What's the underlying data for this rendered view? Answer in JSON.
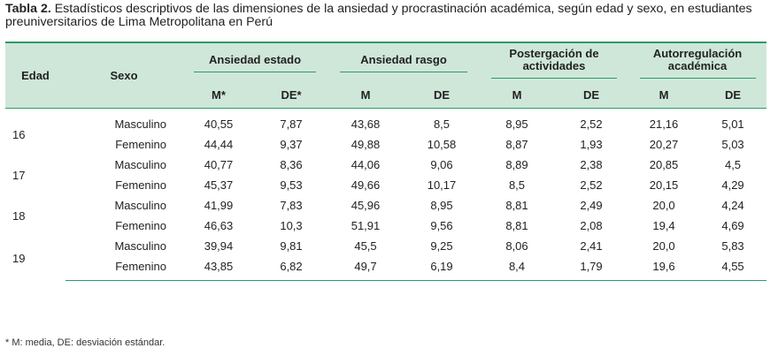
{
  "caption": {
    "label": "Tabla 2.",
    "text": " Estadísticos descriptivos de las dimensiones de la ansiedad y procrastinación académica, según edad y sexo, en estudiantes preuniversitarios de Lima Metropolitana en Perú"
  },
  "headers": {
    "edad": "Edad",
    "sexo": "Sexo",
    "groups": [
      "Ansiedad estado",
      "Ansiedad rasgo",
      "Postergación de actividades",
      "Autorregulación académica"
    ],
    "sub": [
      "M*",
      "DE*",
      "M",
      "DE",
      "M",
      "DE",
      "M",
      "DE"
    ]
  },
  "rows": [
    {
      "edad": "16",
      "sexo": "Masculino",
      "vals": [
        "40,55",
        "7,87",
        "43,68",
        "8,5",
        "8,95",
        "2,52",
        "21,16",
        "5,01"
      ]
    },
    {
      "edad": "",
      "sexo": "Femenino",
      "vals": [
        "44,44",
        "9,37",
        "49,88",
        "10,58",
        "8,87",
        "1,93",
        "20,27",
        "5,03"
      ]
    },
    {
      "edad": "17",
      "sexo": "Masculino",
      "vals": [
        "40,77",
        "8,36",
        "44,06",
        "9,06",
        "8,89",
        "2,38",
        "20,85",
        "4,5"
      ]
    },
    {
      "edad": "",
      "sexo": "Femenino",
      "vals": [
        "45,37",
        "9,53",
        "49,66",
        "10,17",
        "8,5",
        "2,52",
        "20,15",
        "4,29"
      ]
    },
    {
      "edad": "18",
      "sexo": "Masculino",
      "vals": [
        "41,99",
        "7,83",
        "45,96",
        "8,95",
        "8,81",
        "2,49",
        "20,0",
        "4,24"
      ]
    },
    {
      "edad": "",
      "sexo": "Femenino",
      "vals": [
        "46,63",
        "10,3",
        "51,91",
        "9,56",
        "8,81",
        "2,08",
        "19,4",
        "4,69"
      ]
    },
    {
      "edad": "19",
      "sexo": "Masculino",
      "vals": [
        "39,94",
        "9,81",
        "45,5",
        "9,25",
        "8,06",
        "2,41",
        "20,0",
        "5,83"
      ]
    },
    {
      "edad": "",
      "sexo": "Femenino",
      "vals": [
        "43,85",
        "6,82",
        "49,7",
        "6,19",
        "8,4",
        "1,79",
        "19,6",
        "4,55"
      ]
    }
  ],
  "footnote": "* M: media, DE: desviación estándar.",
  "colors": {
    "header_bg": "#cfe7d9",
    "rule": "#2d9a6a"
  }
}
